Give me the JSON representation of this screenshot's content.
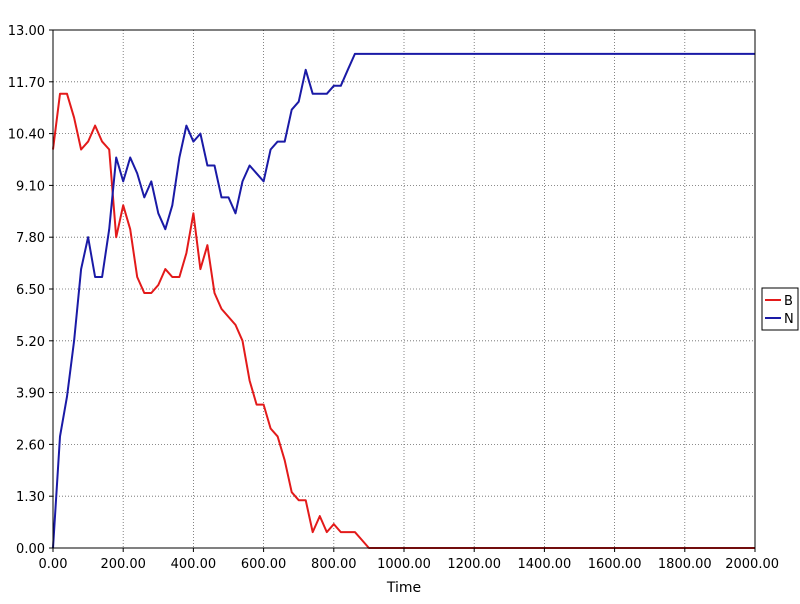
{
  "chart_data": {
    "type": "line",
    "title": "",
    "xlabel": "Time",
    "ylabel": "",
    "xlim": [
      0,
      2000
    ],
    "ylim": [
      0,
      13
    ],
    "grid": true,
    "legend_position": "right",
    "x_ticks": [
      "0.00",
      "200.00",
      "400.00",
      "600.00",
      "800.00",
      "1000.00",
      "1200.00",
      "1400.00",
      "1600.00",
      "1800.00",
      "2000.00"
    ],
    "y_ticks": [
      "0.00",
      "1.30",
      "2.60",
      "3.90",
      "5.20",
      "6.50",
      "7.80",
      "9.10",
      "10.40",
      "11.70",
      "13.00"
    ],
    "series": [
      {
        "name": "B",
        "color": "#e31a1a",
        "x": [
          0,
          20,
          40,
          60,
          80,
          100,
          120,
          140,
          160,
          180,
          200,
          220,
          240,
          260,
          280,
          300,
          320,
          340,
          360,
          380,
          400,
          420,
          440,
          460,
          480,
          500,
          520,
          540,
          560,
          580,
          600,
          620,
          640,
          660,
          680,
          700,
          720,
          740,
          760,
          780,
          800,
          820,
          840,
          860,
          880,
          900,
          1000,
          1200,
          1400,
          1600,
          1800,
          2000
        ],
        "y": [
          10.0,
          11.4,
          11.4,
          10.8,
          10.0,
          10.2,
          10.6,
          10.2,
          10.0,
          7.8,
          8.6,
          8.0,
          6.8,
          6.4,
          6.4,
          6.6,
          7.0,
          6.8,
          6.8,
          7.4,
          8.4,
          7.0,
          7.6,
          6.4,
          6.0,
          5.8,
          5.6,
          5.2,
          4.2,
          3.6,
          3.6,
          3.0,
          2.8,
          2.2,
          1.4,
          1.2,
          1.2,
          0.4,
          0.8,
          0.4,
          0.6,
          0.4,
          0.4,
          0.4,
          0.2,
          0.0,
          0.0,
          0.0,
          0.0,
          0.0,
          0.0,
          0.0
        ]
      },
      {
        "name": "N",
        "color": "#1a1aa6",
        "x": [
          0,
          20,
          40,
          60,
          80,
          100,
          120,
          140,
          160,
          180,
          200,
          220,
          240,
          260,
          280,
          300,
          320,
          340,
          360,
          380,
          400,
          420,
          440,
          460,
          480,
          500,
          520,
          540,
          560,
          580,
          600,
          620,
          640,
          660,
          680,
          700,
          720,
          740,
          760,
          780,
          800,
          820,
          840,
          860,
          880,
          900,
          1000,
          1200,
          1400,
          1600,
          1800,
          2000
        ],
        "y": [
          0.0,
          2.8,
          3.8,
          5.2,
          7.0,
          7.8,
          6.8,
          6.8,
          8.0,
          9.8,
          9.2,
          9.8,
          9.4,
          8.8,
          9.2,
          8.4,
          8.0,
          8.6,
          9.8,
          10.6,
          10.2,
          10.4,
          9.6,
          9.6,
          8.8,
          8.8,
          8.4,
          9.2,
          9.6,
          9.4,
          9.2,
          10.0,
          10.2,
          10.2,
          11.0,
          11.2,
          12.0,
          11.4,
          11.4,
          11.4,
          11.6,
          11.6,
          12.0,
          12.4,
          12.4,
          12.4,
          12.4,
          12.4,
          12.4,
          12.4,
          12.4,
          12.4
        ]
      }
    ]
  },
  "colors": {
    "grid": "#666666",
    "axis": "#000000",
    "background": "#ffffff"
  }
}
